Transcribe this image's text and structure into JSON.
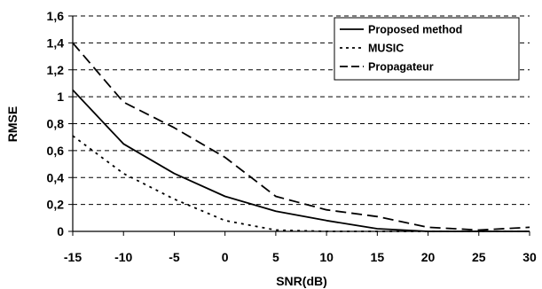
{
  "chart_data": {
    "type": "line",
    "xlabel": "SNR(dB)",
    "ylabel": "RMSE",
    "x": [
      -15,
      -10,
      -5,
      0,
      5,
      10,
      15,
      20,
      25,
      30
    ],
    "xlim": [
      -15,
      30
    ],
    "ylim": [
      0,
      1.6
    ],
    "x_ticks": [
      "-15",
      "-10",
      "-5",
      "0",
      "5",
      "10",
      "15",
      "20",
      "25",
      "30"
    ],
    "y_ticks": [
      "0",
      "0,2",
      "0,4",
      "0,6",
      "0,8",
      "1",
      "1,2",
      "1,4",
      "1,6"
    ],
    "grid": "horizontal dashed",
    "legend_position": "top-right",
    "series": [
      {
        "name": "Proposed method",
        "style": "solid",
        "values": [
          1.05,
          0.65,
          0.43,
          0.26,
          0.15,
          0.08,
          0.02,
          0.0,
          0.0,
          0.0
        ]
      },
      {
        "name": "MUSIC",
        "style": "dotted",
        "values": [
          0.71,
          0.43,
          0.24,
          0.08,
          0.01,
          0.0,
          0.0,
          0.0,
          0.0,
          0.0
        ]
      },
      {
        "name": "Propagateur",
        "style": "dashed",
        "values": [
          1.4,
          0.96,
          0.77,
          0.55,
          0.26,
          0.16,
          0.11,
          0.03,
          0.01,
          0.03
        ]
      }
    ]
  }
}
